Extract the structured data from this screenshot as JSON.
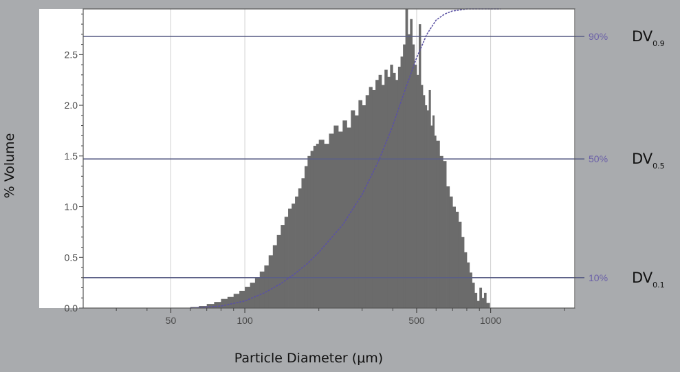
{
  "chart_data": {
    "type": "bar",
    "ylabel": "% Volume",
    "xlabel": "Particle Diameter (μm)",
    "x_scale": "log",
    "xlim": [
      22,
      2200
    ],
    "ylim": [
      0,
      2.95
    ],
    "y_ticks": [
      "0.0",
      "0.5",
      "1.0",
      "1.5",
      "2.0",
      "2.5"
    ],
    "x_ticks": [
      "50",
      "100",
      "500",
      "1000"
    ],
    "grid": true,
    "colors": {
      "bars": "#6b6b6b",
      "cumulative": "#5b52a3",
      "reference_lines": "#5b5f86",
      "plot_background": "#ffffff",
      "page_background": "#a9abae"
    },
    "series": [
      {
        "type": "bar",
        "x": [
          60,
          65,
          70,
          75,
          80,
          85,
          90,
          95,
          100,
          105,
          110,
          115,
          120,
          125,
          130,
          135,
          140,
          145,
          150,
          155,
          160,
          165,
          170,
          175,
          180,
          185,
          190,
          195,
          200,
          210,
          220,
          230,
          240,
          250,
          260,
          270,
          280,
          290,
          300,
          310,
          320,
          330,
          340,
          350,
          360,
          370,
          380,
          390,
          400,
          410,
          420,
          430,
          440,
          450,
          460,
          470,
          480,
          490,
          500,
          510,
          520,
          530,
          540,
          550,
          560,
          570,
          580,
          590,
          600,
          620,
          640,
          660,
          680,
          700,
          720,
          740,
          760,
          780,
          800,
          820,
          840,
          860,
          880,
          900,
          920,
          940,
          960
        ],
        "values": [
          0.01,
          0.02,
          0.04,
          0.06,
          0.09,
          0.11,
          0.14,
          0.17,
          0.21,
          0.25,
          0.3,
          0.36,
          0.42,
          0.52,
          0.62,
          0.72,
          0.82,
          0.9,
          0.98,
          1.03,
          1.1,
          1.18,
          1.28,
          1.4,
          1.5,
          1.55,
          1.6,
          1.62,
          1.66,
          1.62,
          1.72,
          1.8,
          1.74,
          1.85,
          1.78,
          1.95,
          1.9,
          2.05,
          2.0,
          2.1,
          2.18,
          2.15,
          2.25,
          2.3,
          2.2,
          2.35,
          2.28,
          2.4,
          2.32,
          2.25,
          2.38,
          2.48,
          2.6,
          2.95,
          2.7,
          2.85,
          2.6,
          2.4,
          2.3,
          2.8,
          2.2,
          2.1,
          2.0,
          1.95,
          2.15,
          1.8,
          1.9,
          1.7,
          1.65,
          1.5,
          1.45,
          1.2,
          1.1,
          1.0,
          0.95,
          0.85,
          0.7,
          0.55,
          0.45,
          0.35,
          0.25,
          0.15,
          0.07,
          0.2,
          0.1,
          0.15,
          0.05
        ]
      },
      {
        "type": "line",
        "name": "cumulative",
        "x": [
          60,
          80,
          100,
          120,
          140,
          160,
          180,
          200,
          250,
          300,
          350,
          400,
          450,
          500,
          550,
          600,
          650,
          700,
          750,
          800,
          900,
          1000,
          1100
        ],
        "values": [
          0.0,
          0.02,
          0.07,
          0.15,
          0.24,
          0.34,
          0.44,
          0.55,
          0.82,
          1.12,
          1.45,
          1.8,
          2.16,
          2.47,
          2.7,
          2.84,
          2.9,
          2.93,
          2.94,
          2.95,
          2.95,
          2.95,
          2.95
        ]
      }
    ],
    "reference_lines": [
      {
        "y": 0.3,
        "pct": "10%",
        "dv_main": "DV",
        "dv_sub": "0.1"
      },
      {
        "y": 1.47,
        "pct": "50%",
        "dv_main": "DV",
        "dv_sub": "0.5"
      },
      {
        "y": 2.68,
        "pct": "90%",
        "dv_main": "DV",
        "dv_sub": "0.9"
      }
    ]
  }
}
